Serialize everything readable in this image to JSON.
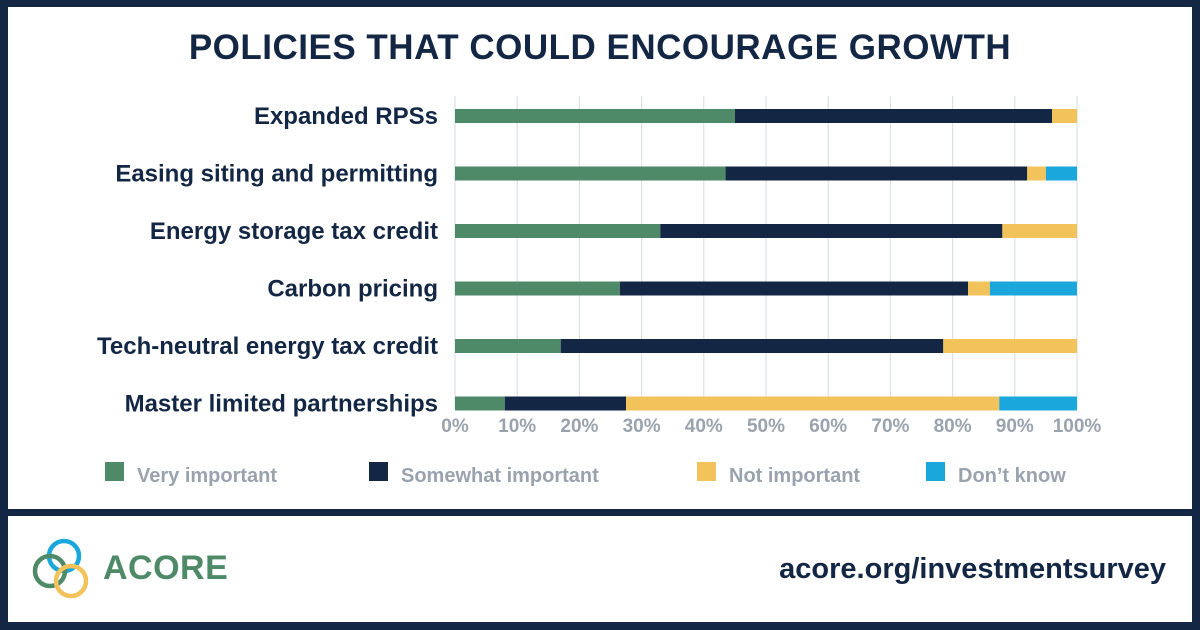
{
  "title": "POLICIES THAT COULD ENCOURAGE GROWTH",
  "footer": {
    "brand": "ACORE",
    "url": "acore.org/investmentsurvey"
  },
  "colors": {
    "very": "#4f8a68",
    "somewhat": "#132744",
    "not": "#f3c35b",
    "dont_know": "#1aa8dc",
    "frame": "#132744",
    "tick": "#9aa3ad",
    "grid": "#dde1e5"
  },
  "chart_data": {
    "type": "bar",
    "orientation": "horizontal",
    "stacked": true,
    "title": "POLICIES THAT COULD ENCOURAGE GROWTH",
    "xlabel": "",
    "ylabel": "",
    "xlim": [
      0,
      100
    ],
    "x_ticks": [
      "0%",
      "10%",
      "20%",
      "30%",
      "40%",
      "50%",
      "60%",
      "70%",
      "80%",
      "90%",
      "100%"
    ],
    "grid": true,
    "legend_position": "bottom",
    "categories": [
      "Expanded RPSs",
      "Easing siting and permitting",
      "Energy storage tax credit",
      "Carbon pricing",
      "Tech-neutral energy tax credit",
      "Master limited partnerships"
    ],
    "series": [
      {
        "name": "Very important",
        "color_key": "very",
        "values": [
          45,
          43.5,
          33,
          26.5,
          17,
          8
        ]
      },
      {
        "name": "Somewhat important",
        "color_key": "somewhat",
        "values": [
          51,
          48.5,
          55,
          56,
          61.5,
          19.5
        ]
      },
      {
        "name": "Not important",
        "color_key": "not",
        "values": [
          4,
          3,
          12,
          3.5,
          21.5,
          60
        ]
      },
      {
        "name": "Don’t know",
        "color_key": "dont_know",
        "values": [
          0,
          5,
          0,
          14,
          0,
          12.5
        ]
      }
    ]
  }
}
